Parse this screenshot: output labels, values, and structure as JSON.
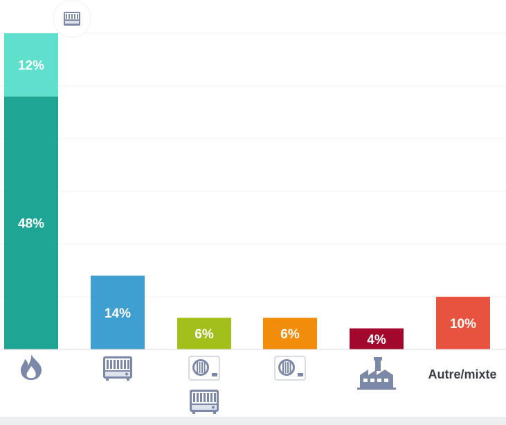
{
  "chart_data": {
    "type": "bar",
    "title": "",
    "xlabel": "",
    "ylabel": "",
    "ylim": [
      0,
      60
    ],
    "grid": true,
    "categories": [
      {
        "key": "gas",
        "icon": "flame-icon",
        "text": "",
        "segments": [
          {
            "value": 48,
            "label": "48%",
            "color": "#1fa593"
          },
          {
            "value": 12,
            "label": "12%",
            "color": "#5fe0cd"
          }
        ],
        "top_badge_icon": "boiler-icon"
      },
      {
        "key": "electric-heater",
        "icon": "electric-heater-icon",
        "text": "",
        "segments": [
          {
            "value": 14,
            "label": "14%",
            "color": "#3f9fd0"
          }
        ]
      },
      {
        "key": "heat-pump-plus-heater",
        "icon": "heat-pump-icon",
        "icon2": "electric-heater-icon",
        "text": "",
        "segments": [
          {
            "value": 6,
            "label": "6%",
            "color": "#a3bf1c"
          }
        ]
      },
      {
        "key": "heat-pump",
        "icon": "heat-pump-icon",
        "text": "",
        "segments": [
          {
            "value": 6,
            "label": "6%",
            "color": "#f28c0b"
          }
        ]
      },
      {
        "key": "district-heating",
        "icon": "factory-icon",
        "text": "",
        "segments": [
          {
            "value": 4,
            "label": "4%",
            "color": "#a1082b"
          }
        ]
      },
      {
        "key": "other",
        "icon": "",
        "text": "Autre/mixte",
        "segments": [
          {
            "value": 10,
            "label": "10%",
            "color": "#e8533f"
          }
        ]
      }
    ]
  }
}
